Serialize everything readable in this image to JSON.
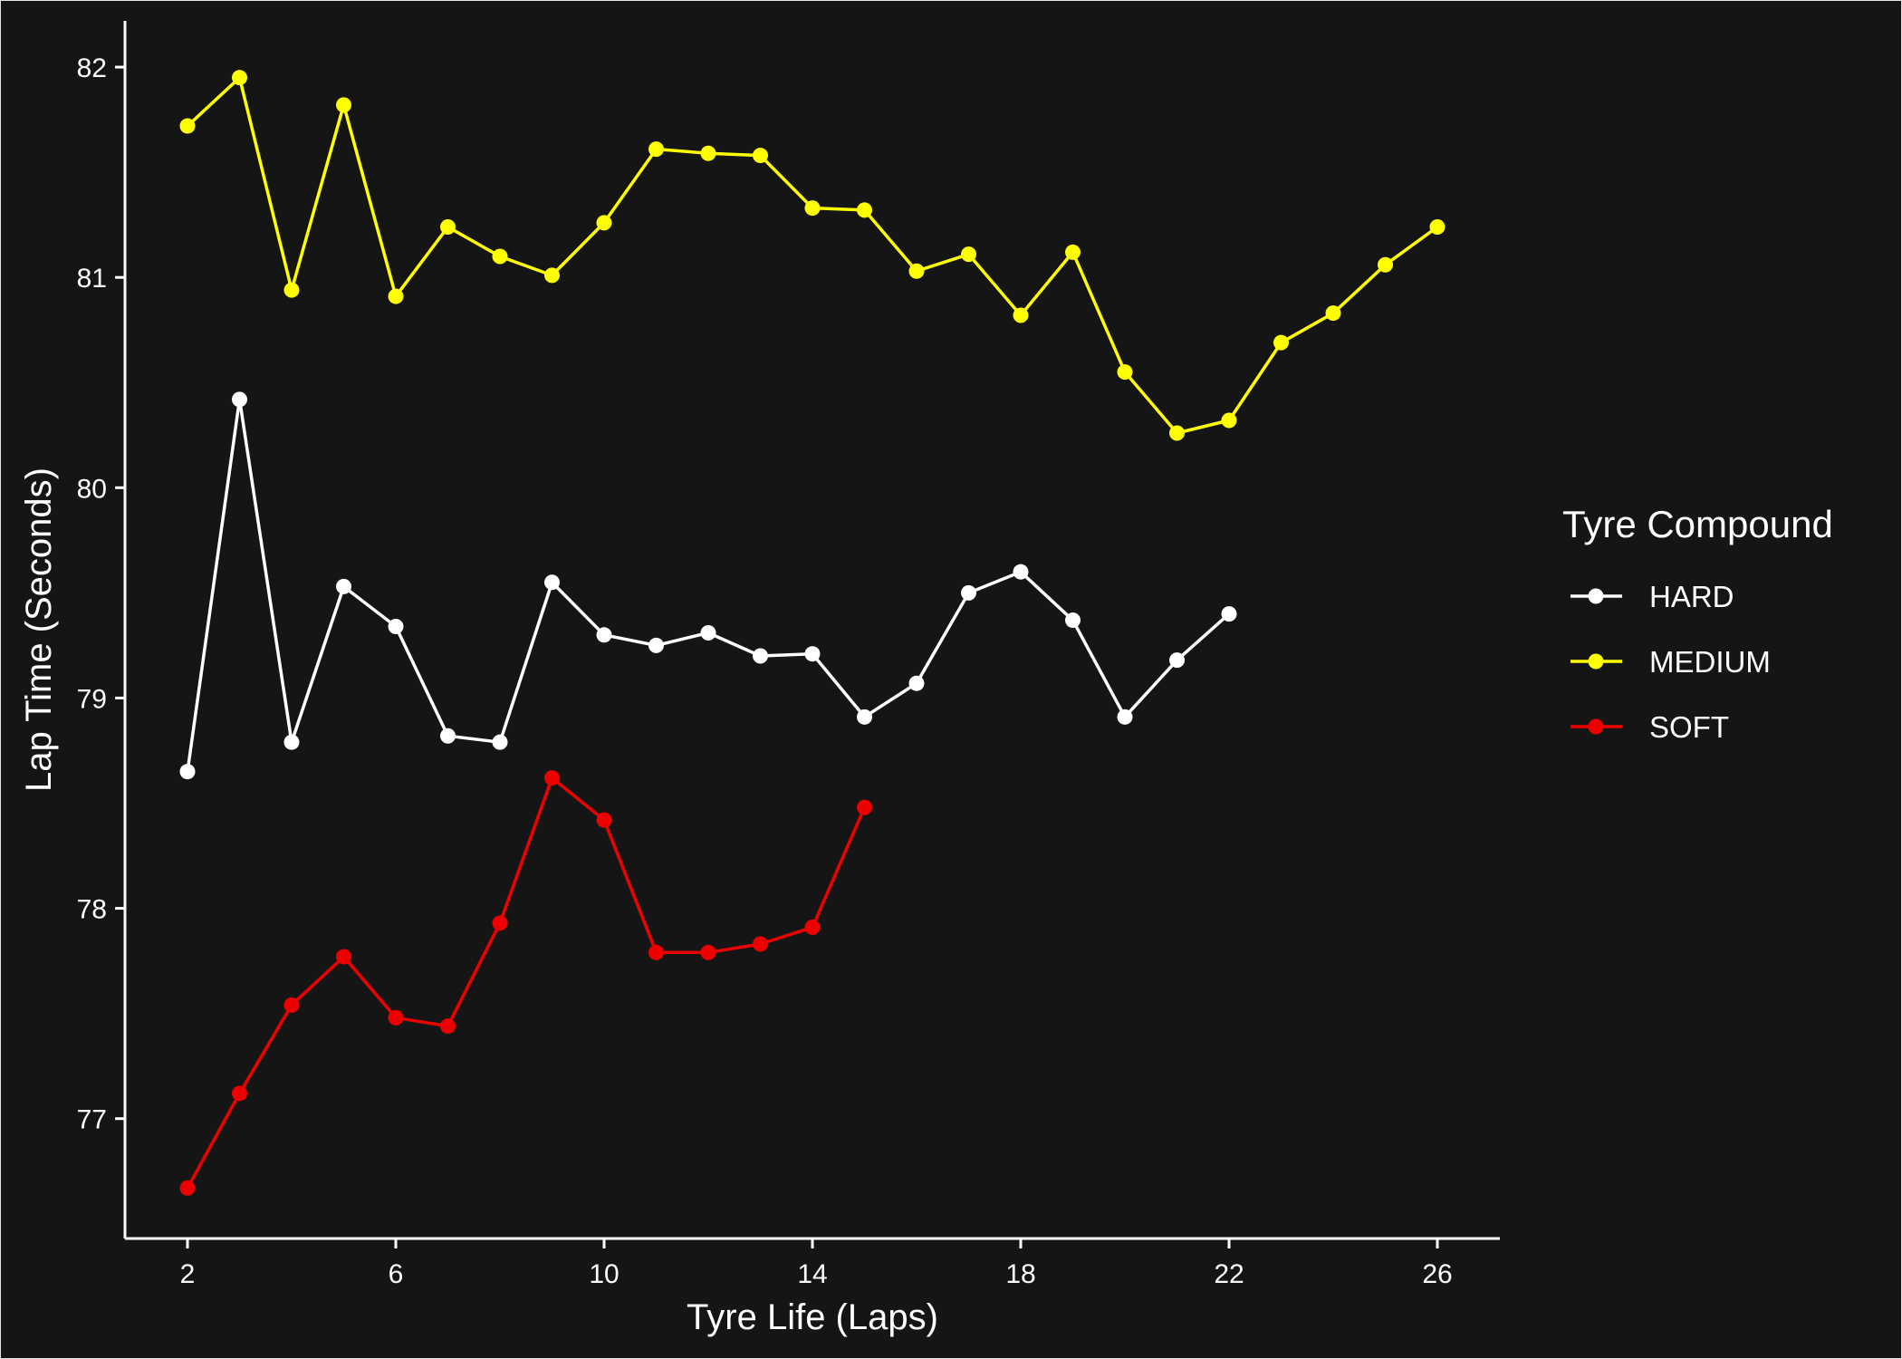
{
  "chart_data": {
    "type": "line",
    "xlabel": "Tyre Life (Laps)",
    "ylabel": "Lap Time (Seconds)",
    "xlim": [
      0.8,
      27.2
    ],
    "ylim": [
      76.43,
      82.22
    ],
    "xticks": [
      2,
      6,
      10,
      14,
      18,
      22,
      26
    ],
    "yticks": [
      77,
      78,
      79,
      80,
      81,
      82
    ],
    "grid": false,
    "legend": {
      "title": "Tyre Compound",
      "placement": "right"
    },
    "series": [
      {
        "name": "HARD",
        "color": "#ffffff",
        "points": [
          [
            2,
            78.65
          ],
          [
            3,
            80.42
          ],
          [
            4,
            78.79
          ],
          [
            5,
            79.53
          ],
          [
            6,
            79.34
          ],
          [
            7,
            78.82
          ],
          [
            8,
            78.79
          ],
          [
            9,
            79.55
          ],
          [
            10,
            79.3
          ],
          [
            11,
            79.25
          ],
          [
            12,
            79.31
          ],
          [
            13,
            79.2
          ],
          [
            14,
            79.21
          ],
          [
            15,
            78.91
          ],
          [
            16,
            79.07
          ],
          [
            17,
            79.5
          ],
          [
            18,
            79.6
          ],
          [
            19,
            79.37
          ],
          [
            20,
            78.91
          ],
          [
            21,
            79.18
          ],
          [
            22,
            79.4
          ]
        ]
      },
      {
        "name": "MEDIUM",
        "color": "#ffff00",
        "points": [
          [
            2,
            81.72
          ],
          [
            3,
            81.95
          ],
          [
            4,
            80.94
          ],
          [
            5,
            81.82
          ],
          [
            6,
            80.91
          ],
          [
            7,
            81.24
          ],
          [
            8,
            81.1
          ],
          [
            9,
            81.01
          ],
          [
            10,
            81.26
          ],
          [
            11,
            81.61
          ],
          [
            12,
            81.59
          ],
          [
            13,
            81.58
          ],
          [
            14,
            81.33
          ],
          [
            15,
            81.32
          ],
          [
            16,
            81.03
          ],
          [
            17,
            81.11
          ],
          [
            18,
            80.82
          ],
          [
            19,
            81.12
          ],
          [
            20,
            80.55
          ],
          [
            21,
            80.26
          ],
          [
            22,
            80.32
          ],
          [
            23,
            80.69
          ],
          [
            24,
            80.83
          ],
          [
            25,
            81.06
          ],
          [
            26,
            81.24
          ]
        ]
      },
      {
        "name": "SOFT",
        "color": "#ee0000",
        "points": [
          [
            2,
            76.67
          ],
          [
            3,
            77.12
          ],
          [
            4,
            77.54
          ],
          [
            5,
            77.77
          ],
          [
            6,
            77.48
          ],
          [
            7,
            77.44
          ],
          [
            8,
            77.93
          ],
          [
            9,
            78.62
          ],
          [
            10,
            78.42
          ],
          [
            11,
            77.79
          ],
          [
            12,
            77.79
          ],
          [
            13,
            77.83
          ],
          [
            14,
            77.91
          ],
          [
            15,
            78.48
          ]
        ]
      }
    ]
  }
}
